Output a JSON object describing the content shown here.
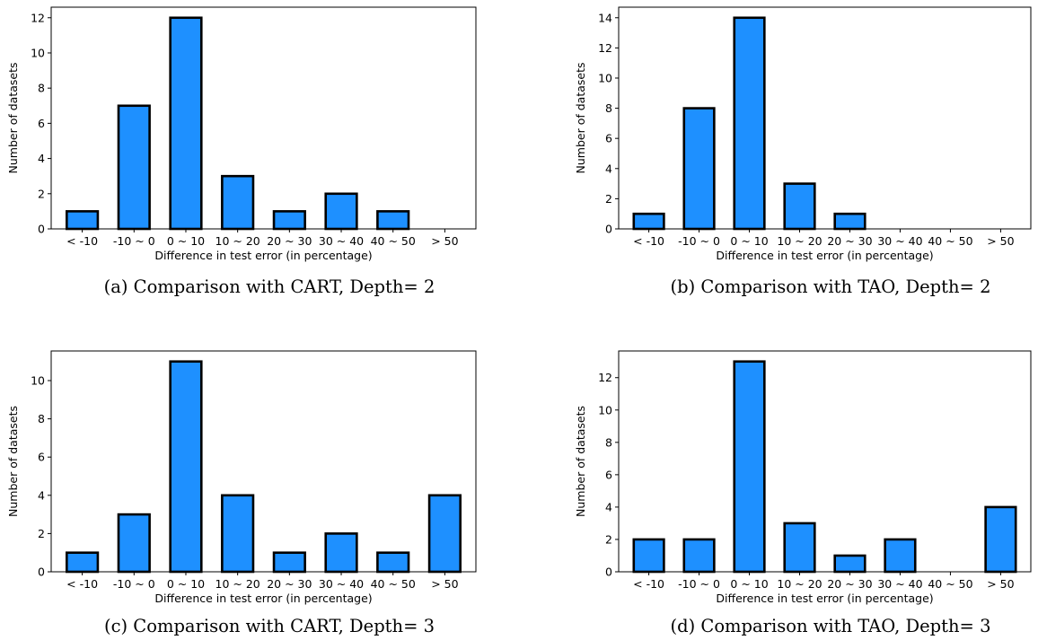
{
  "chart_data": [
    {
      "type": "bar",
      "categories": [
        "< -10",
        "-10 ~ 0",
        "0 ~ 10",
        "10 ~ 20",
        "20 ~ 30",
        "30 ~ 40",
        "40 ~ 50",
        "> 50"
      ],
      "values": [
        1,
        7,
        12,
        3,
        1,
        2,
        1,
        0
      ],
      "xlabel": "Difference in test error (in percentage)",
      "ylabel": "Number of datasets",
      "ylim": [
        0,
        12.6
      ],
      "yticks": [
        0,
        2,
        4,
        6,
        8,
        10,
        12
      ],
      "bar_color": "#1e90ff",
      "edge_color": "#000000",
      "grid": false,
      "caption": "(a) Comparison with CART, Depth= 2"
    },
    {
      "type": "bar",
      "categories": [
        "< -10",
        "-10 ~ 0",
        "0 ~ 10",
        "10 ~ 20",
        "20 ~ 30",
        "30 ~ 40",
        "40 ~ 50",
        "> 50"
      ],
      "values": [
        1,
        8,
        14,
        3,
        1,
        0,
        0,
        0
      ],
      "xlabel": "Difference in test error (in percentage)",
      "ylabel": "Number of datasets",
      "ylim": [
        0,
        14.7
      ],
      "yticks": [
        0,
        2,
        4,
        6,
        8,
        10,
        12,
        14
      ],
      "bar_color": "#1e90ff",
      "edge_color": "#000000",
      "grid": false,
      "caption": "(b) Comparison with TAO, Depth= 2"
    },
    {
      "type": "bar",
      "categories": [
        "< -10",
        "-10 ~ 0",
        "0 ~ 10",
        "10 ~ 20",
        "20 ~ 30",
        "30 ~ 40",
        "40 ~ 50",
        "> 50"
      ],
      "values": [
        1,
        3,
        11,
        4,
        1,
        2,
        1,
        4
      ],
      "xlabel": "Difference in test error (in percentage)",
      "ylabel": "Number of datasets",
      "ylim": [
        0,
        11.55
      ],
      "yticks": [
        0,
        2,
        4,
        6,
        8,
        10
      ],
      "bar_color": "#1e90ff",
      "edge_color": "#000000",
      "grid": false,
      "caption": "(c) Comparison with CART, Depth= 3"
    },
    {
      "type": "bar",
      "categories": [
        "< -10",
        "-10 ~ 0",
        "0 ~ 10",
        "10 ~ 20",
        "20 ~ 30",
        "30 ~ 40",
        "40 ~ 50",
        "> 50"
      ],
      "values": [
        2,
        2,
        13,
        3,
        1,
        2,
        0,
        4
      ],
      "xlabel": "Difference in test error (in percentage)",
      "ylabel": "Number of datasets",
      "ylim": [
        0,
        13.65
      ],
      "yticks": [
        0,
        2,
        4,
        6,
        8,
        10,
        12
      ],
      "bar_color": "#1e90ff",
      "edge_color": "#000000",
      "grid": false,
      "caption": "(d) Comparison with TAO, Depth= 3"
    }
  ]
}
